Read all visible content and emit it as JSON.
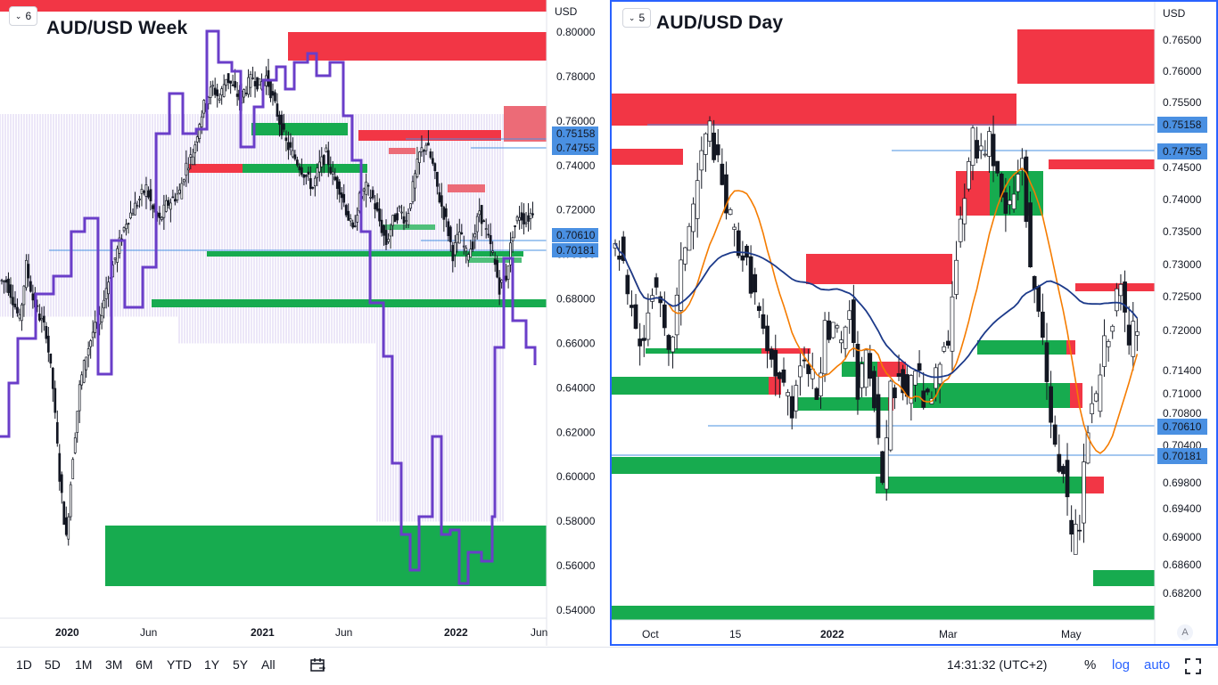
{
  "left_pane": {
    "badge": "6",
    "title": "AUD/USD Week",
    "currency": "USD"
  },
  "right_pane": {
    "badge": "5",
    "title": "AUD/USD Day",
    "currency": "USD",
    "auto_scale_button": "A"
  },
  "bottom_bar": {
    "ranges": [
      "1D",
      "5D",
      "1M",
      "3M",
      "6M",
      "YTD",
      "1Y",
      "5Y",
      "All"
    ],
    "clock": "14:31:32 (UTC+2)",
    "percent_label": "%",
    "log_label": "log",
    "auto_label": "auto"
  },
  "colors": {
    "bull_zone": "#17ab4f",
    "bear_zone": "#f23645",
    "ma_orange": "#f57c00",
    "ma_navy": "#1c3a8a",
    "purple_line": "#6a3ec9",
    "ref_line": "#4a90e2",
    "accent": "#2962ff"
  },
  "chart_data": [
    {
      "type": "candlestick",
      "title": "AUD/USD Week",
      "y_axis_ticks": [
        "0.80000",
        "0.78000",
        "0.76000",
        "0.74000",
        "0.72000",
        "0.70000",
        "0.68000",
        "0.66000",
        "0.64000",
        "0.62000",
        "0.60000",
        "0.58000",
        "0.56000",
        "0.54000"
      ],
      "x_axis_ticks": [
        "2020",
        "Jun",
        "2021",
        "Jun",
        "2022",
        "Jun"
      ],
      "ylim": [
        0.535,
        0.81
      ],
      "price_tags": [
        "0.75158",
        "0.74755",
        "0.70610",
        "0.70181"
      ],
      "close_series": [
        0.688,
        0.68,
        0.67,
        0.695,
        0.68,
        0.672,
        0.665,
        0.64,
        0.6,
        0.572,
        0.61,
        0.64,
        0.655,
        0.665,
        0.67,
        0.685,
        0.695,
        0.705,
        0.715,
        0.72,
        0.725,
        0.73,
        0.72,
        0.715,
        0.722,
        0.725,
        0.728,
        0.74,
        0.745,
        0.76,
        0.77,
        0.775,
        0.77,
        0.78,
        0.775,
        0.77,
        0.775,
        0.78,
        0.776,
        0.78,
        0.77,
        0.76,
        0.75,
        0.745,
        0.74,
        0.735,
        0.73,
        0.74,
        0.745,
        0.735,
        0.73,
        0.72,
        0.71,
        0.725,
        0.73,
        0.725,
        0.715,
        0.705,
        0.715,
        0.72,
        0.715,
        0.73,
        0.745,
        0.75,
        0.74,
        0.725,
        0.715,
        0.7,
        0.71,
        0.7,
        0.705,
        0.72,
        0.71,
        0.7,
        0.685,
        0.69,
        0.71,
        0.718,
        0.715,
        0.72
      ]
    },
    {
      "type": "candlestick",
      "title": "AUD/USD Day",
      "y_axis_ticks": [
        "0.76500",
        "0.76000",
        "0.75500",
        "0.75000",
        "0.74500",
        "0.74000",
        "0.73500",
        "0.73000",
        "0.72500",
        "0.72000",
        "0.71400",
        "0.71000",
        "0.70800",
        "0.70400",
        "0.69800",
        "0.69400",
        "0.69000",
        "0.68600",
        "0.68200"
      ],
      "x_axis_ticks": [
        "Oct",
        "15",
        "2022",
        "Mar",
        "May"
      ],
      "ylim": [
        0.679,
        0.768
      ],
      "price_tags": [
        "0.75158",
        "0.74755",
        "0.70610",
        "0.70181"
      ],
      "close_series": [
        0.734,
        0.726,
        0.722,
        0.72,
        0.728,
        0.724,
        0.717,
        0.726,
        0.735,
        0.74,
        0.748,
        0.752,
        0.746,
        0.74,
        0.736,
        0.733,
        0.729,
        0.724,
        0.717,
        0.716,
        0.713,
        0.71,
        0.718,
        0.716,
        0.712,
        0.721,
        0.722,
        0.719,
        0.725,
        0.712,
        0.717,
        0.71,
        0.699,
        0.712,
        0.714,
        0.712,
        0.716,
        0.711,
        0.711,
        0.717,
        0.719,
        0.733,
        0.742,
        0.75,
        0.748,
        0.751,
        0.744,
        0.739,
        0.742,
        0.748,
        0.73,
        0.725,
        0.712,
        0.703,
        0.7,
        0.689,
        0.693,
        0.707,
        0.711,
        0.719,
        0.724,
        0.728,
        0.719,
        0.723
      ]
    }
  ]
}
